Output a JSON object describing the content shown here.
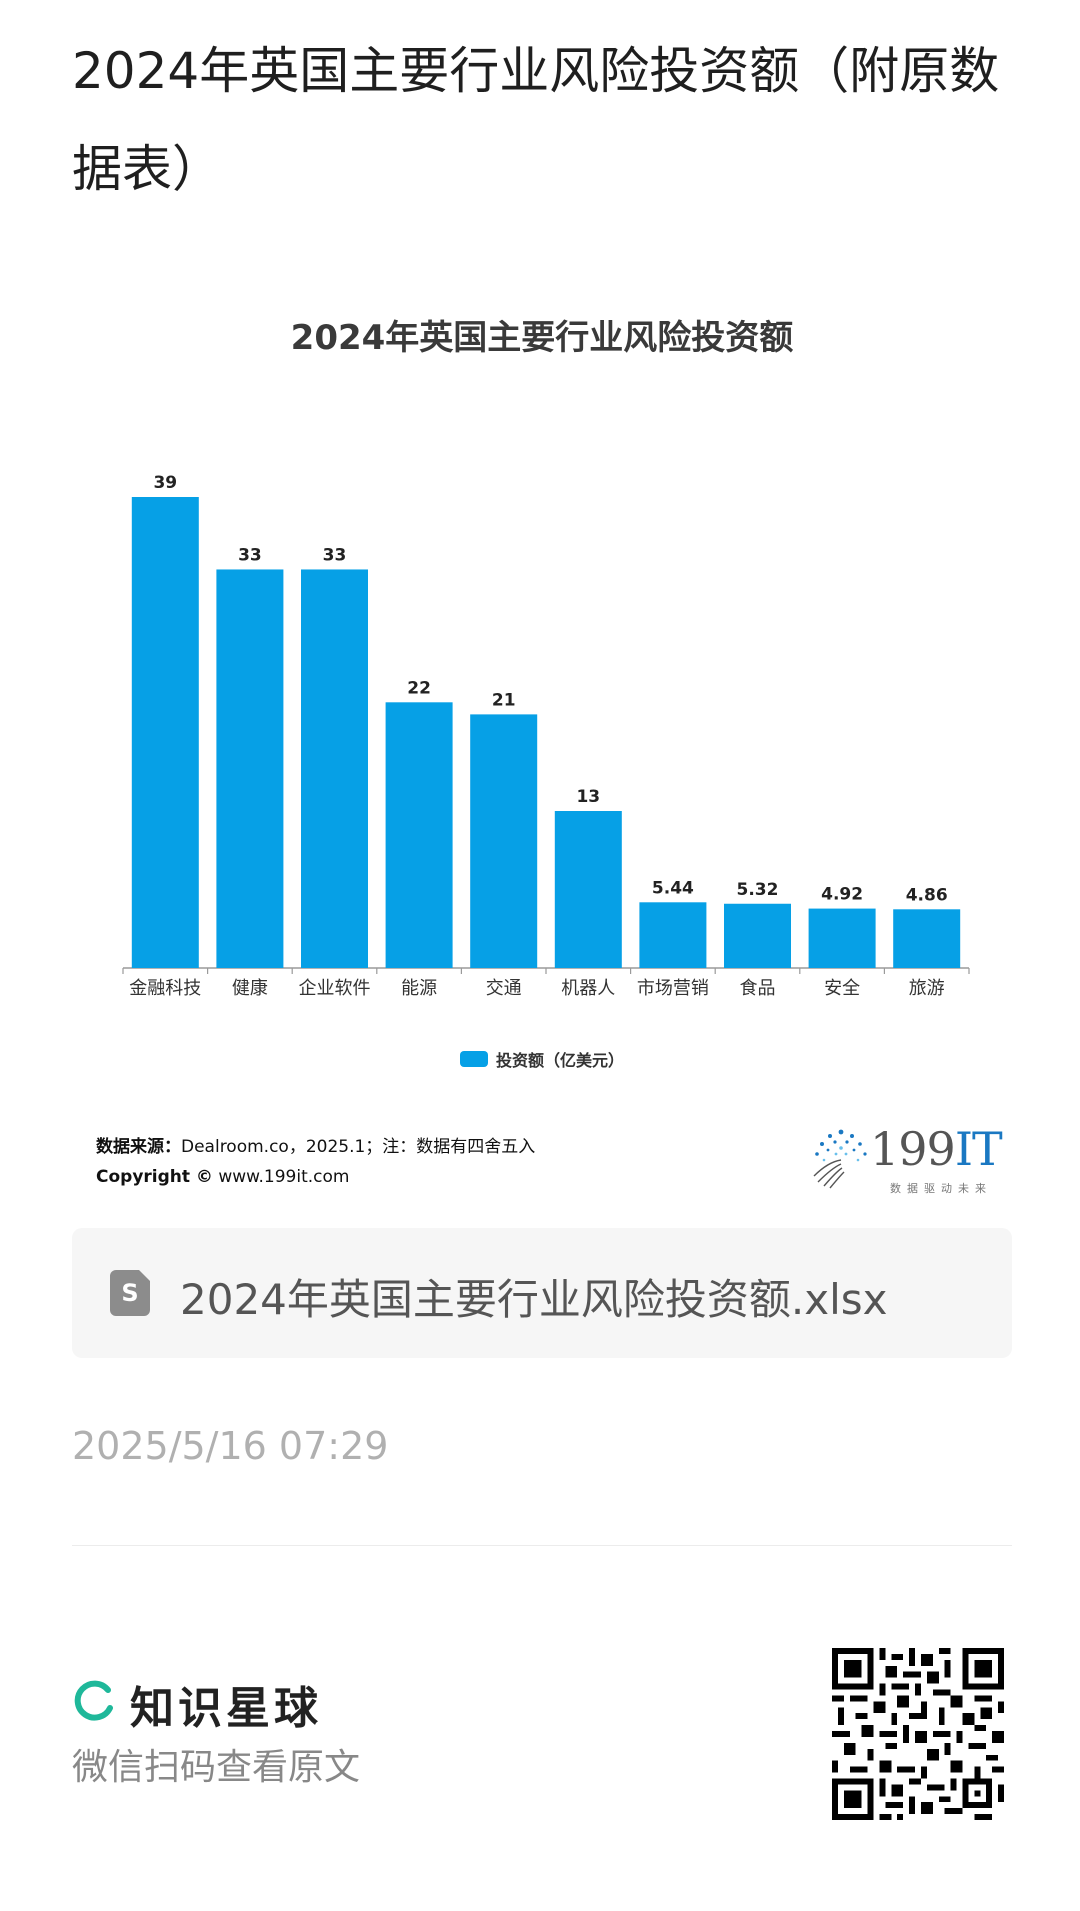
{
  "page_title": "2024年英国主要行业风险投资额（附原数据表）",
  "chart_data": {
    "type": "bar",
    "title": "2024年英国主要行业风险投资额",
    "categories": [
      "金融科技",
      "健康",
      "企业软件",
      "能源",
      "交通",
      "机器人",
      "市场营销",
      "食品",
      "安全",
      "旅游"
    ],
    "series": [
      {
        "name": "投资额（亿美元）",
        "values": [
          39,
          33,
          33,
          22,
          21,
          13,
          5.44,
          5.32,
          4.92,
          4.86
        ],
        "color": "#06a0e6"
      }
    ],
    "value_labels": [
      "39",
      "33",
      "33",
      "22",
      "21",
      "13",
      "5.44",
      "5.32",
      "4.92",
      "4.86"
    ],
    "ylim": [
      0,
      39
    ],
    "grid": false,
    "legend_position": "bottom-center"
  },
  "source": {
    "label": "数据来源：",
    "text": "Dealroom.co，2025.1；注：数据有四舍五入",
    "copyright_label": "Copyright ©",
    "copyright_site": "www.199it.com"
  },
  "brand": {
    "number": "199",
    "suffix": "IT",
    "slogan": "数据驱动未来",
    "icon": "dandelion-logo-icon"
  },
  "file": {
    "name": "2024年英国主要行业风险投资额.xlsx",
    "icon_letter": "S",
    "icon": "spreadsheet-file-icon"
  },
  "timestamp": "2025/5/16 07:29",
  "footer": {
    "app_name": "知识星球",
    "scan_hint": "微信扫码查看原文",
    "logo_icon": "planet-ring-icon",
    "qr_icon": "qr-code-icon",
    "accent": "#1fb89a"
  }
}
